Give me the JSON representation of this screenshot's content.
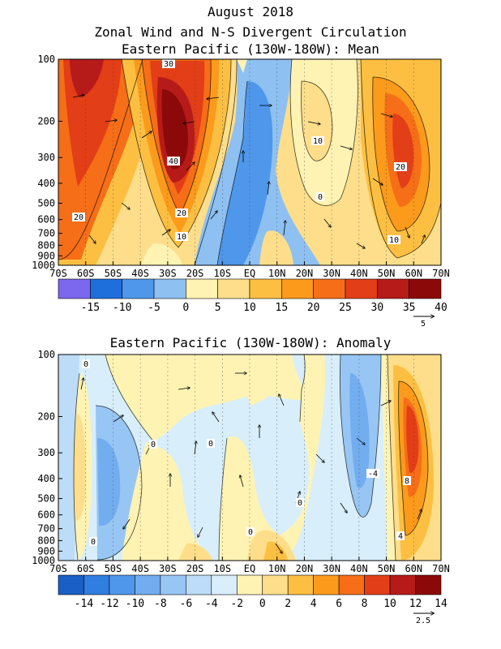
{
  "header": {
    "line1": "August 2018",
    "line2": "Zonal Wind and N-S Divergent Circulation",
    "line3": "Eastern Pacific (130W-180W): Mean"
  },
  "chart_data": [
    {
      "type": "heatmap",
      "title": "Eastern Pacific (130W-180W): Mean",
      "x_ticks": [
        "70S",
        "60S",
        "50S",
        "40S",
        "30S",
        "20S",
        "10S",
        "EQ",
        "10N",
        "20N",
        "30N",
        "40N",
        "50N",
        "60N",
        "70N"
      ],
      "y_ticks": [
        "100",
        "200",
        "300",
        "400",
        "500",
        "600",
        "700",
        "800",
        "900",
        "1000"
      ],
      "y_scale": "log",
      "colorbar": {
        "colors": [
          "#7b68ee",
          "#1e6fdc",
          "#4f97eb",
          "#8ec0f2",
          "#fff3b3",
          "#fede8a",
          "#fdbf42",
          "#fc9a1b",
          "#f66e17",
          "#e23e17",
          "#b61b1a",
          "#8c0909"
        ],
        "labels": [
          "-15",
          "-10",
          "-5",
          "0",
          "5",
          "10",
          "15",
          "20",
          "25",
          "30",
          "35",
          "40"
        ]
      },
      "contour_labels": [
        "30",
        "40",
        "20",
        "10",
        "20",
        "10",
        "0",
        "20",
        "10"
      ],
      "vector_reference": "5"
    },
    {
      "type": "heatmap",
      "title": "Eastern Pacific (130W-180W): Anomaly",
      "x_ticks": [
        "70S",
        "60S",
        "50S",
        "40S",
        "30S",
        "20S",
        "10S",
        "EQ",
        "10N",
        "20N",
        "30N",
        "40N",
        "50N",
        "60N",
        "70N"
      ],
      "y_ticks": [
        "100",
        "200",
        "300",
        "400",
        "500",
        "600",
        "700",
        "800",
        "900",
        "1000"
      ],
      "y_scale": "log",
      "colorbar": {
        "colors": [
          "#1a5fc6",
          "#2f7ee0",
          "#4f97eb",
          "#72adef",
          "#98c6f4",
          "#bcdcf8",
          "#d8eefa",
          "#fff3b3",
          "#fede8a",
          "#fdbf42",
          "#fc9a1b",
          "#f66e17",
          "#e23e17",
          "#b61b1a",
          "#8c0909"
        ],
        "labels": [
          "-14",
          "-12",
          "-10",
          "-8",
          "-6",
          "-4",
          "-2",
          "0",
          "2",
          "4",
          "6",
          "8",
          "10",
          "12",
          "14"
        ]
      },
      "contour_labels": [
        "0",
        "0",
        "0",
        "0",
        "0",
        "0",
        "-4",
        "8",
        "4"
      ],
      "vector_reference": "2.5"
    }
  ]
}
